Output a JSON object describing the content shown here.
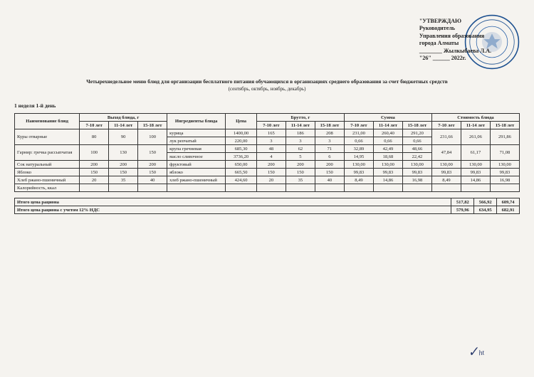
{
  "approval": {
    "line1": "\"УТВЕРЖДАЮ",
    "line2": "Руководитель",
    "line3": "Управления образования",
    "line4": "города Алматы",
    "line5": "________ Жылкыбаева Л.А.",
    "line6": "\"26\" ______ 2022г."
  },
  "stamp": {
    "outer_color": "#1b4f8f",
    "inner_color": "#2961a8"
  },
  "title": "Четырехнедельное меню блюд для организации бесплатного питания обучающихся в организациях среднего образования за счет бюджетных средств",
  "subtitle": "(сентябрь, октябрь, ноябрь, декабрь)",
  "week_label": "1 неделя 1-й день",
  "headers": {
    "dish": "Наименование блюд",
    "output": "Выход блюда, г",
    "ingredients": "Ингредиенты блюда",
    "price": "Цена",
    "brutto": "Брутто, г",
    "sum": "Сумма",
    "cost": "Стоимость блюда",
    "age1": "7-10 лет",
    "age2": "11-14 лет",
    "age3": "15-18 лет"
  },
  "rows": [
    {
      "dish": "Куры отварные",
      "out": [
        "80",
        "90",
        "100"
      ],
      "ing_rows": [
        {
          "ing": "курица",
          "price": "1400,00",
          "b": [
            "165",
            "186",
            "208"
          ],
          "s": [
            "231,00",
            "260,40",
            "291,20"
          ]
        },
        {
          "ing": "лук репчатый",
          "price": "220,00",
          "b": [
            "3",
            "3",
            "3"
          ],
          "s": [
            "0,66",
            "0,66",
            "0,66"
          ]
        }
      ],
      "cost": [
        "231,66",
        "261,06",
        "291,86"
      ]
    },
    {
      "dish": "Гарнир: гречка рассыпчатая",
      "out": [
        "100",
        "130",
        "150"
      ],
      "ing_rows": [
        {
          "ing": "крупа гречневая",
          "price": "685,30",
          "b": [
            "48",
            "62",
            "71"
          ],
          "s": [
            "32,89",
            "42,49",
            "48,66"
          ]
        },
        {
          "ing": "масло сливочное",
          "price": "3736,20",
          "b": [
            "4",
            "5",
            "6"
          ],
          "s": [
            "14,95",
            "18,68",
            "22,42"
          ]
        }
      ],
      "cost": [
        "47,84",
        "61,17",
        "71,08"
      ]
    },
    {
      "dish": "Сок натуральный",
      "out": [
        "200",
        "200",
        "200"
      ],
      "ing_rows": [
        {
          "ing": "фруктовый",
          "price": "650,00",
          "b": [
            "200",
            "200",
            "200"
          ],
          "s": [
            "130,00",
            "130,00",
            "130,00"
          ]
        }
      ],
      "cost": [
        "130,00",
        "130,00",
        "130,00"
      ]
    },
    {
      "dish": "Яблоко",
      "out": [
        "150",
        "150",
        "150"
      ],
      "ing_rows": [
        {
          "ing": "яблоко",
          "price": "665,50",
          "b": [
            "150",
            "150",
            "150"
          ],
          "s": [
            "99,83",
            "99,83",
            "99,83"
          ]
        }
      ],
      "cost": [
        "99,83",
        "99,83",
        "99,83"
      ]
    },
    {
      "dish": "Хлеб ржано-пшеничный",
      "out": [
        "20",
        "35",
        "40"
      ],
      "ing_rows": [
        {
          "ing": "хлеб ржано-пшеничный",
          "price": "424,60",
          "b": [
            "20",
            "35",
            "40"
          ],
          "s": [
            "8,49",
            "14,86",
            "16,98"
          ]
        }
      ],
      "cost": [
        "8,49",
        "14,86",
        "16,98"
      ]
    },
    {
      "dish": "Калорийность, ккал",
      "out": [
        "",
        "",
        ""
      ],
      "ing_rows": [
        {
          "ing": "",
          "price": "",
          "b": [
            "",
            "",
            ""
          ],
          "s": [
            "",
            "",
            ""
          ]
        }
      ],
      "cost": [
        "",
        "",
        ""
      ]
    }
  ],
  "totals": {
    "label1": "Итого цена рациона",
    "vals1": [
      "517,82",
      "566,92",
      "609,74"
    ],
    "label2": "Итого цена рациона с учетом 12% НДС",
    "vals2": [
      "579,96",
      "634,95",
      "682,91"
    ]
  },
  "signature_text": "подпись"
}
